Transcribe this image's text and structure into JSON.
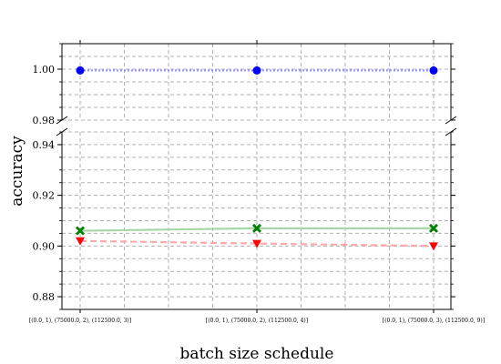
{
  "chart_data": {
    "type": "line",
    "title": "",
    "xlabel": "batch size schedule",
    "ylabel": "accuracy",
    "categories": [
      "[(0.0, 1), (75000.0, 2), (112500.0, 3)]",
      "[(0.0, 1), (75000.0, 2), (112500.0, 4)]",
      "[(0.0, 1), (75000.0, 3), (112500.0, 9)]"
    ],
    "broken_axis": true,
    "upper_ylim": [
      0.98,
      1.01
    ],
    "lower_ylim": [
      0.875,
      0.945
    ],
    "upper_yticks": [
      "0.98",
      "1.00"
    ],
    "lower_yticks": [
      "0.88",
      "0.90",
      "0.92",
      "0.94"
    ],
    "grid": true,
    "series": [
      {
        "values": [
          0.9995,
          0.9995,
          0.9995
        ],
        "color": "#0000ff",
        "marker": "circle",
        "line_style": "dotted"
      },
      {
        "values": [
          0.906,
          0.907,
          0.907
        ],
        "color": "#008000",
        "marker": "x-filled",
        "line_style": "solid"
      },
      {
        "values": [
          0.902,
          0.901,
          0.9
        ],
        "color": "#ff0000",
        "marker": "triangle-down",
        "line_style": "dashed"
      }
    ]
  }
}
